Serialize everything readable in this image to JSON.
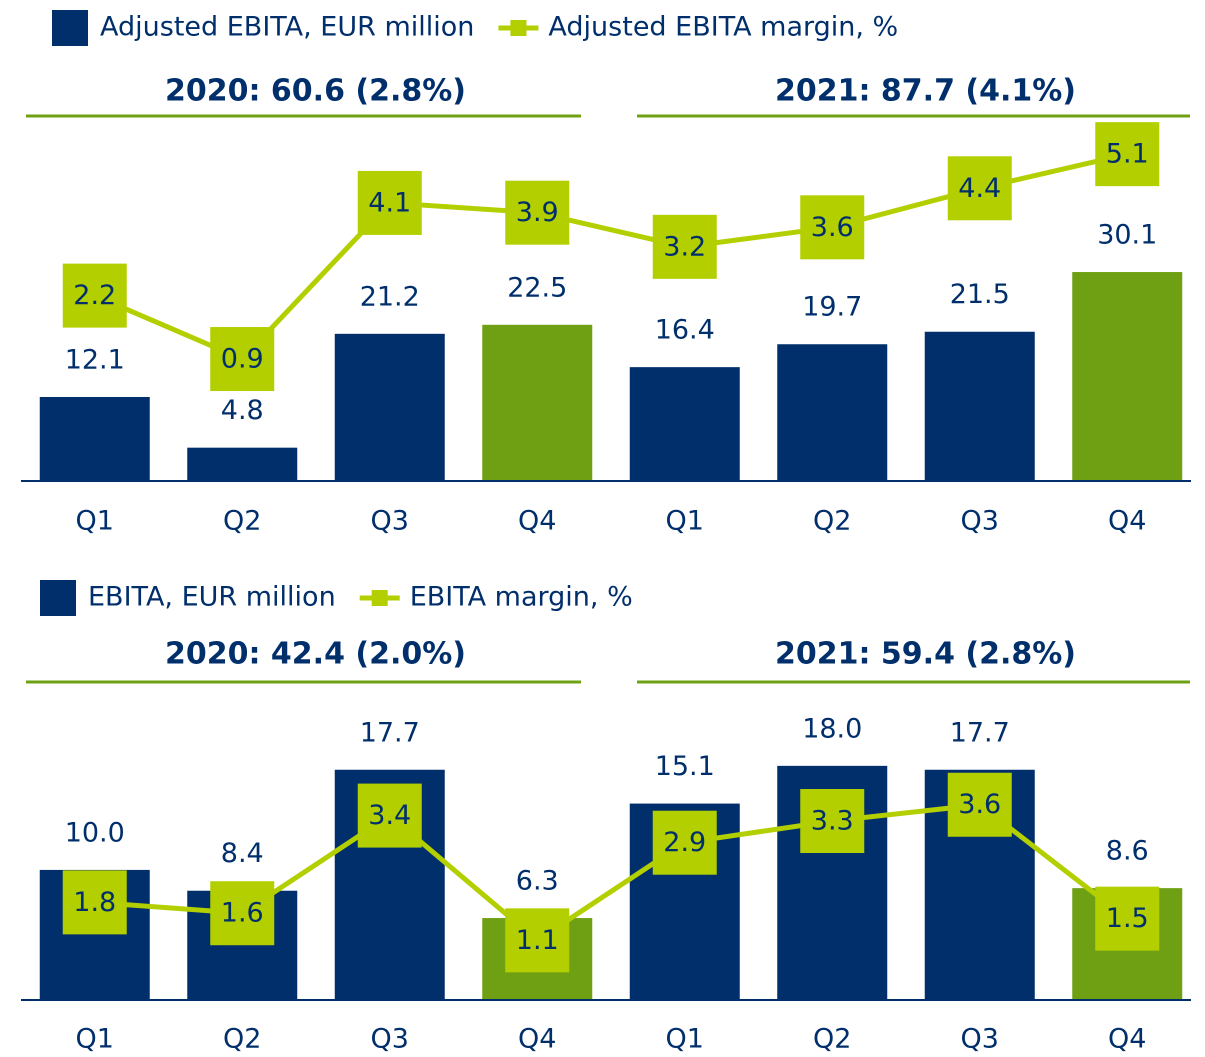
{
  "chart_data": [
    {
      "type": "bar",
      "categories": [
        "Q1",
        "Q2",
        "Q3",
        "Q4",
        "Q1",
        "Q2",
        "Q3",
        "Q4"
      ],
      "annotations": [
        "2020: 60.6 (2.8%)",
        "2021: 87.7 (4.1%)"
      ],
      "series": [
        {
          "name": "Adjusted EBITA, EUR million",
          "type": "bar",
          "color": "#002f6c",
          "colors": [
            "#002f6c",
            "#002f6c",
            "#002f6c",
            "#6fa014",
            "#002f6c",
            "#002f6c",
            "#002f6c",
            "#6fa014"
          ],
          "values": [
            12.1,
            4.8,
            21.2,
            22.5,
            16.4,
            19.7,
            21.5,
            30.1
          ],
          "value_labels": [
            "12.1",
            "4.8",
            "21.2",
            "22.5",
            "16.4",
            "19.7",
            "21.5",
            "30.1"
          ]
        },
        {
          "name": "Adjusted EBITA margin, %",
          "type": "line",
          "axis": "y2",
          "color": "#b3cf00",
          "values": [
            2.2,
            0.9,
            4.1,
            3.9,
            3.2,
            3.6,
            4.4,
            5.1
          ],
          "value_labels": [
            "2.2",
            "0.9",
            "4.1",
            "3.9",
            "3.2",
            "3.6",
            "4.4",
            "5.1"
          ]
        }
      ],
      "ylim": [
        0,
        52
      ],
      "y2lim": [
        -1.6,
        5.8
      ]
    },
    {
      "type": "bar",
      "categories": [
        "Q1",
        "Q2",
        "Q3",
        "Q4",
        "Q1",
        "Q2",
        "Q3",
        "Q4"
      ],
      "annotations": [
        "2020: 42.4 (2.0%)",
        "2021: 59.4 (2.8%)"
      ],
      "series": [
        {
          "name": "EBITA, EUR million",
          "type": "bar",
          "color": "#002f6c",
          "colors": [
            "#002f6c",
            "#002f6c",
            "#002f6c",
            "#6fa014",
            "#002f6c",
            "#002f6c",
            "#002f6c",
            "#6fa014"
          ],
          "values": [
            10.0,
            8.4,
            17.7,
            6.3,
            15.1,
            18.0,
            17.7,
            8.6
          ],
          "value_labels": [
            "10.0",
            "8.4",
            "17.7",
            "6.3",
            "15.1",
            "18.0",
            "17.7",
            "8.6"
          ]
        },
        {
          "name": "EBITA margin, %",
          "type": "line",
          "axis": "y2",
          "color": "#b3cf00",
          "values": [
            1.8,
            1.6,
            3.4,
            1.1,
            2.9,
            3.3,
            3.6,
            1.5
          ],
          "value_labels": [
            "1.8",
            "1.6",
            "3.4",
            "1.1",
            "2.9",
            "3.3",
            "3.6",
            "1.5"
          ]
        }
      ],
      "ylim": [
        0,
        24.6
      ],
      "y2lim": [
        0,
        5.9
      ]
    }
  ]
}
